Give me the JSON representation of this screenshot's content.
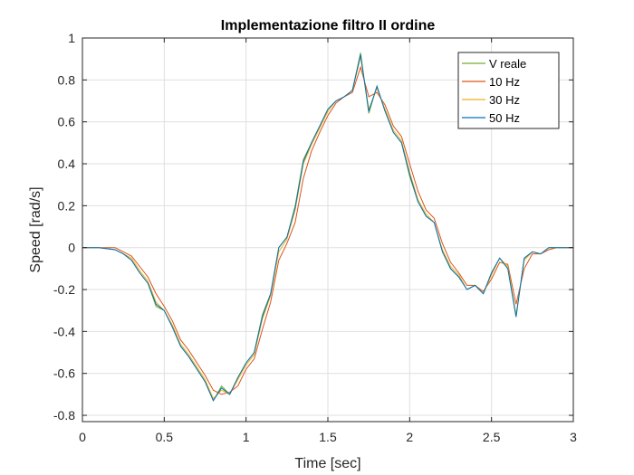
{
  "chart_data": {
    "type": "line",
    "title": "Implementazione filtro II ordine",
    "xlabel": "Time [sec]",
    "ylabel": "Speed [rad/s]",
    "xlim": [
      0,
      3
    ],
    "ylim": [
      -0.83,
      1.0
    ],
    "x_ticks": [
      0,
      0.5,
      1,
      1.5,
      2,
      2.5,
      3
    ],
    "x_tick_labels": [
      "0",
      "0.5",
      "1",
      "1.5",
      "2",
      "2.5",
      "3"
    ],
    "y_ticks": [
      -0.8,
      -0.6,
      -0.4,
      -0.2,
      0,
      0.2,
      0.4,
      0.6,
      0.8,
      1
    ],
    "y_tick_labels": [
      "-0.8",
      "-0.6",
      "-0.4",
      "-0.2",
      "0",
      "0.2",
      "0.4",
      "0.6",
      "0.8",
      "1"
    ],
    "grid": true,
    "legend_position": "top-right",
    "x": [
      0,
      0.1,
      0.2,
      0.25,
      0.3,
      0.35,
      0.4,
      0.45,
      0.5,
      0.55,
      0.6,
      0.65,
      0.7,
      0.75,
      0.8,
      0.85,
      0.9,
      0.95,
      1.0,
      1.05,
      1.1,
      1.15,
      1.2,
      1.25,
      1.3,
      1.35,
      1.4,
      1.45,
      1.5,
      1.55,
      1.6,
      1.65,
      1.7,
      1.75,
      1.8,
      1.85,
      1.9,
      1.95,
      2.0,
      2.05,
      2.1,
      2.15,
      2.2,
      2.25,
      2.3,
      2.35,
      2.4,
      2.45,
      2.5,
      2.55,
      2.6,
      2.65,
      2.7,
      2.75,
      2.8,
      2.85,
      2.9,
      2.95,
      3.0
    ],
    "series": [
      {
        "name": "V reale",
        "color": "#77AC30",
        "values": [
          0,
          0,
          -0.01,
          -0.03,
          -0.06,
          -0.12,
          -0.17,
          -0.28,
          -0.3,
          -0.38,
          -0.47,
          -0.52,
          -0.58,
          -0.64,
          -0.73,
          -0.66,
          -0.7,
          -0.62,
          -0.55,
          -0.5,
          -0.32,
          -0.22,
          0,
          0.05,
          0.2,
          0.42,
          0.5,
          0.58,
          0.66,
          0.7,
          0.72,
          0.75,
          0.93,
          0.64,
          0.77,
          0.65,
          0.55,
          0.5,
          0.34,
          0.22,
          0.15,
          0.12,
          -0.02,
          -0.1,
          -0.14,
          -0.2,
          -0.18,
          -0.22,
          -0.12,
          -0.05,
          -0.1,
          -0.33,
          -0.05,
          -0.02,
          -0.03,
          0,
          0,
          0,
          0
        ]
      },
      {
        "name": "10 Hz",
        "color": "#D95319",
        "values": [
          0,
          0,
          0,
          -0.02,
          -0.04,
          -0.09,
          -0.14,
          -0.22,
          -0.28,
          -0.35,
          -0.44,
          -0.49,
          -0.55,
          -0.61,
          -0.68,
          -0.7,
          -0.69,
          -0.66,
          -0.58,
          -0.53,
          -0.39,
          -0.26,
          -0.06,
          0.02,
          0.12,
          0.33,
          0.46,
          0.55,
          0.63,
          0.69,
          0.72,
          0.74,
          0.86,
          0.72,
          0.74,
          0.68,
          0.58,
          0.53,
          0.4,
          0.27,
          0.18,
          0.14,
          0.02,
          -0.07,
          -0.12,
          -0.18,
          -0.18,
          -0.21,
          -0.15,
          -0.07,
          -0.08,
          -0.27,
          -0.1,
          -0.03,
          -0.03,
          -0.01,
          0,
          0,
          0
        ]
      },
      {
        "name": "30 Hz",
        "color": "#EDB120",
        "values": [
          0,
          0,
          -0.01,
          -0.03,
          -0.05,
          -0.11,
          -0.16,
          -0.26,
          -0.3,
          -0.37,
          -0.46,
          -0.51,
          -0.57,
          -0.63,
          -0.72,
          -0.68,
          -0.7,
          -0.63,
          -0.56,
          -0.51,
          -0.34,
          -0.23,
          -0.02,
          0.04,
          0.18,
          0.4,
          0.49,
          0.57,
          0.65,
          0.7,
          0.72,
          0.75,
          0.91,
          0.66,
          0.76,
          0.66,
          0.56,
          0.51,
          0.36,
          0.23,
          0.16,
          0.12,
          -0.01,
          -0.09,
          -0.13,
          -0.2,
          -0.18,
          -0.22,
          -0.13,
          -0.05,
          -0.09,
          -0.32,
          -0.06,
          -0.02,
          -0.03,
          0,
          0,
          0,
          0
        ]
      },
      {
        "name": "50 Hz",
        "color": "#0072BD",
        "values": [
          0,
          0,
          -0.01,
          -0.03,
          -0.06,
          -0.12,
          -0.17,
          -0.27,
          -0.3,
          -0.38,
          -0.47,
          -0.52,
          -0.58,
          -0.64,
          -0.73,
          -0.67,
          -0.7,
          -0.62,
          -0.55,
          -0.5,
          -0.33,
          -0.22,
          0,
          0.05,
          0.19,
          0.41,
          0.5,
          0.58,
          0.66,
          0.7,
          0.72,
          0.75,
          0.92,
          0.65,
          0.77,
          0.65,
          0.55,
          0.5,
          0.35,
          0.22,
          0.15,
          0.12,
          -0.02,
          -0.1,
          -0.14,
          -0.2,
          -0.18,
          -0.22,
          -0.12,
          -0.05,
          -0.1,
          -0.33,
          -0.05,
          -0.02,
          -0.03,
          0,
          0,
          0,
          0
        ]
      }
    ]
  }
}
